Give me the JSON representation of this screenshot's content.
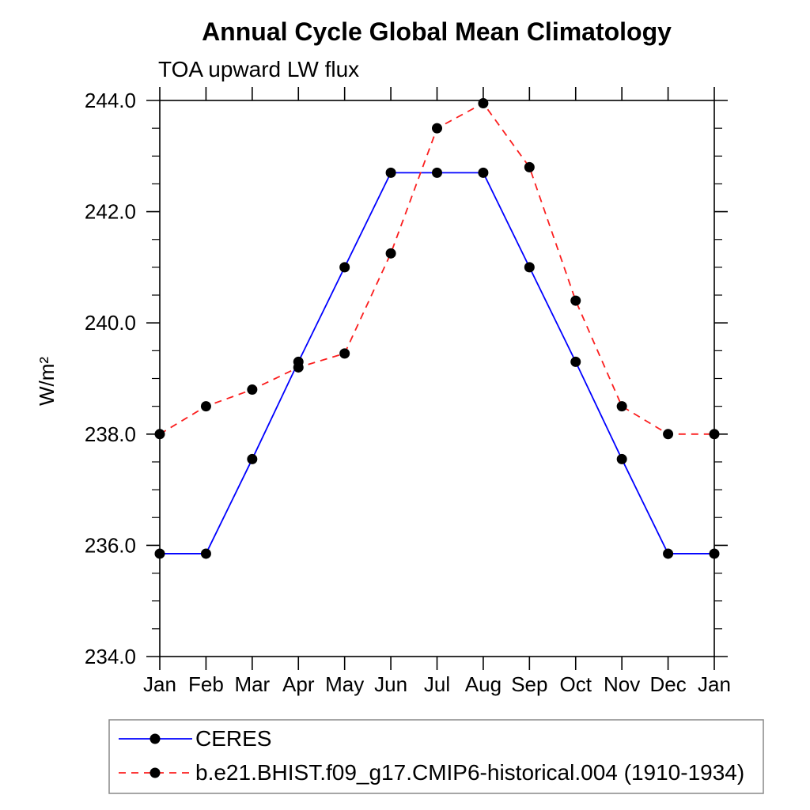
{
  "chart_data": {
    "type": "line",
    "title": "Annual Cycle Global Mean Climatology",
    "subtitle": "TOA upward LW flux",
    "ylabel": "W/m²",
    "xlabel": "",
    "x_categories": [
      "Jan",
      "Feb",
      "Mar",
      "Apr",
      "May",
      "Jun",
      "Jul",
      "Aug",
      "Sep",
      "Oct",
      "Nov",
      "Dec",
      "Jan"
    ],
    "ylim": [
      234.0,
      244.0
    ],
    "ytick_major_values": [
      234.0,
      236.0,
      238.0,
      240.0,
      242.0,
      244.0
    ],
    "ytick_major_labels": [
      "234.0",
      "236.0",
      "238.0",
      "240.0",
      "242.0",
      "244.0"
    ],
    "ytick_minor_step": 0.5,
    "grid": false,
    "frame": "box",
    "marker": {
      "shape": "filled-circle",
      "color": "#000000",
      "radius": 6.5
    },
    "series": [
      {
        "name": "CERES",
        "color": "#0000ff",
        "line_style": "solid",
        "values": [
          235.85,
          235.85,
          237.55,
          239.3,
          241.0,
          242.7,
          242.7,
          242.7,
          241.0,
          239.3,
          237.55,
          235.85,
          235.85
        ]
      },
      {
        "name": "b.e21.BHIST.f09_g17.CMIP6-historical.004 (1910-1934)",
        "color": "#fb1e1e",
        "line_style": "dashed",
        "values": [
          238.0,
          238.5,
          238.8,
          239.2,
          239.45,
          241.25,
          243.5,
          243.95,
          242.8,
          240.4,
          238.5,
          238.0,
          238.0
        ]
      }
    ],
    "legend_position": "bottom-left"
  }
}
